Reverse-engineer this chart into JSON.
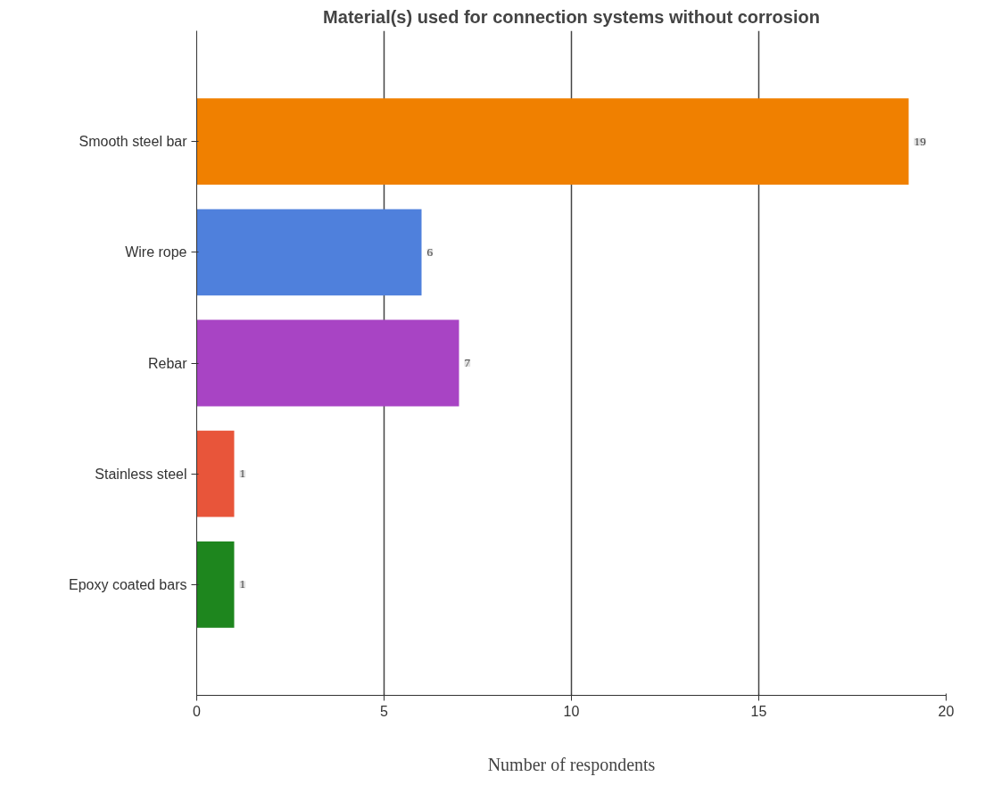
{
  "chart_data": {
    "type": "bar",
    "orientation": "horizontal",
    "title": "Material(s) used for connection systems without corrosion",
    "xlabel": "Number of respondents",
    "categories": [
      "Smooth steel bar",
      "Wire rope",
      "Rebar",
      "Stainless steel",
      "Epoxy coated bars"
    ],
    "values": [
      19,
      6,
      7,
      1,
      1
    ],
    "colors": [
      "#f08000",
      "#4f80dc",
      "#a844c4",
      "#e8553a",
      "#1e861e"
    ],
    "xlim": [
      0,
      20
    ],
    "xticks": [
      0,
      5,
      10,
      15,
      20
    ],
    "grid": "x",
    "data_labels": true
  }
}
